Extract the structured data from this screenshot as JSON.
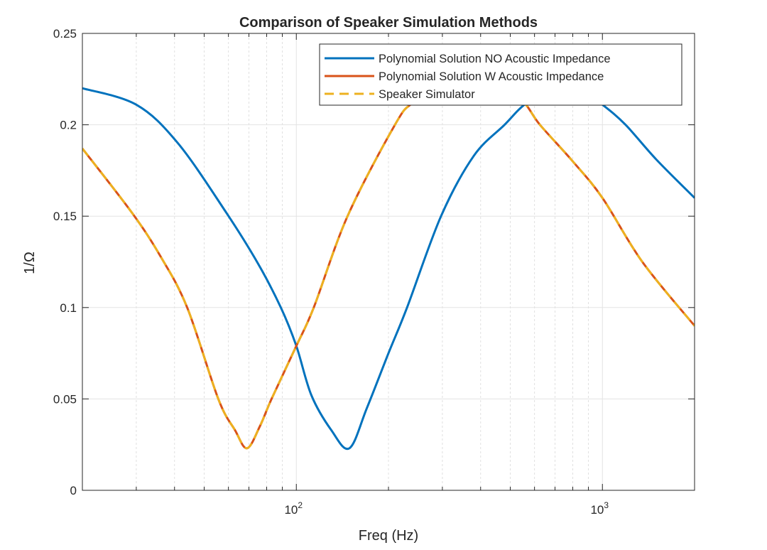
{
  "chart_data": {
    "type": "line",
    "title": "Comparison of Speaker Simulation Methods",
    "xlabel": "Freq (Hz)",
    "ylabel": "1/Ω",
    "xscale": "log",
    "xlim": [
      20,
      2000
    ],
    "ylim": [
      0,
      0.25
    ],
    "grid": true,
    "legend_position": "top-right",
    "yticks": [
      0,
      0.05,
      0.1,
      0.15,
      0.2,
      0.25
    ],
    "ytick_labels": [
      "0",
      "0.05",
      "0.1",
      "0.15",
      "0.2",
      "0.25"
    ],
    "xticks": [
      100,
      1000
    ],
    "xtick_labels": [
      {
        "base": "10",
        "exp": "2"
      },
      {
        "base": "10",
        "exp": "3"
      }
    ],
    "series": [
      {
        "name": "Polynomial Solution NO Acoustic Impedance",
        "color": "#0072BD",
        "style": "solid",
        "x": [
          20,
          30,
          41,
          59,
          75,
          89,
          100,
          112,
          130,
          149,
          170,
          200,
          230,
          297,
          380,
          479,
          547,
          650,
          740,
          850,
          1000,
          1190,
          1500,
          2000
        ],
        "y": [
          0.22,
          0.211,
          0.19,
          0.152,
          0.124,
          0.1,
          0.079,
          0.052,
          0.033,
          0.023,
          0.045,
          0.075,
          0.1,
          0.15,
          0.183,
          0.2,
          0.21,
          0.219,
          0.222,
          0.219,
          0.211,
          0.2,
          0.181,
          0.16
        ]
      },
      {
        "name": "Polynomial Solution W Acoustic Impedance",
        "color": "#D95319",
        "style": "solid",
        "x": [
          20,
          29,
          36,
          44,
          55.6,
          63,
          69,
          76,
          83,
          100,
          114,
          147,
          210,
          240,
          300,
          362,
          440,
          547,
          625,
          800,
          1000,
          1350,
          2000
        ],
        "y": [
          0.187,
          0.152,
          0.128,
          0.1,
          0.05,
          0.033,
          0.023,
          0.035,
          0.05,
          0.079,
          0.1,
          0.15,
          0.2,
          0.212,
          0.222,
          0.225,
          0.222,
          0.213,
          0.2,
          0.18,
          0.16,
          0.125,
          0.09
        ]
      },
      {
        "name": "Speaker Simulator",
        "color": "#EDB120",
        "style": "dashed",
        "x": [
          20,
          29,
          36,
          44,
          55.6,
          63,
          69,
          76,
          83,
          100,
          114,
          147,
          210,
          240,
          300,
          362,
          440,
          547,
          625,
          800,
          1000,
          1350,
          2000
        ],
        "y": [
          0.187,
          0.152,
          0.128,
          0.1,
          0.05,
          0.033,
          0.023,
          0.035,
          0.05,
          0.079,
          0.1,
          0.15,
          0.2,
          0.212,
          0.222,
          0.225,
          0.222,
          0.213,
          0.2,
          0.18,
          0.16,
          0.125,
          0.09
        ]
      }
    ]
  }
}
